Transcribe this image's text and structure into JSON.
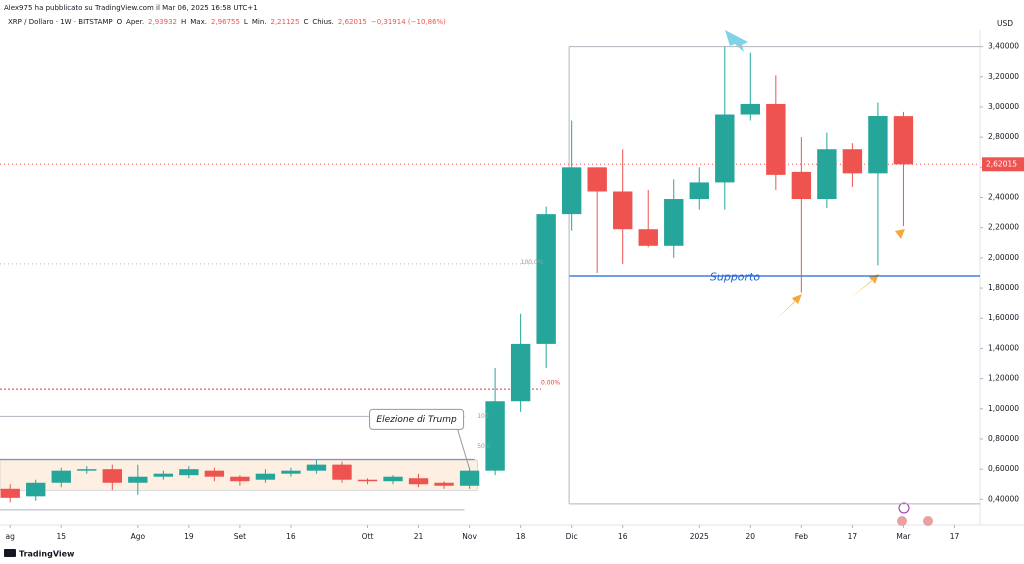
{
  "header": {
    "author": "Alex975 ha pubblicato su TradingView.com il Mar 06, 2025 16:58 UTC+1",
    "symbol": "XRP / Dollaro · 1W · BITSTAMP",
    "fields": [
      {
        "key": "O",
        "label": "Aper.",
        "value": "2,93932"
      },
      {
        "key": "H",
        "label": "Max.",
        "value": "2,96755"
      },
      {
        "key": "L",
        "label": "Min.",
        "value": "2,21125"
      },
      {
        "key": "C",
        "label": "Chius.",
        "value": "2,62015"
      }
    ],
    "change": "−0,31914 (−10,86%)",
    "currency": "USD",
    "logo": "TradingView"
  },
  "chart_data": {
    "type": "candlestick",
    "up_color": "#26a69a",
    "down_color": "#ef5350",
    "x": [
      0,
      1,
      2,
      3,
      4,
      5,
      6,
      7,
      8,
      9,
      10,
      11,
      12,
      13,
      14,
      15,
      16,
      17,
      18,
      19,
      20,
      21,
      22,
      23,
      24,
      25,
      26,
      27,
      28,
      29,
      30,
      31,
      32,
      33,
      34,
      35
    ],
    "open": [
      0.47,
      0.42,
      0.51,
      0.59,
      0.6,
      0.51,
      0.55,
      0.56,
      0.59,
      0.55,
      0.53,
      0.57,
      0.59,
      0.63,
      0.53,
      0.52,
      0.54,
      0.51,
      0.49,
      0.59,
      1.05,
      1.43,
      2.29,
      2.6,
      2.44,
      2.19,
      2.08,
      2.39,
      2.5,
      2.95,
      3.02,
      2.57,
      2.39,
      2.72,
      2.56,
      2.93932
    ],
    "high": [
      0.5,
      0.53,
      0.61,
      0.62,
      0.63,
      0.63,
      0.59,
      0.62,
      0.61,
      0.56,
      0.6,
      0.61,
      0.66,
      0.65,
      0.54,
      0.56,
      0.57,
      0.52,
      0.61,
      1.27,
      1.63,
      2.34,
      2.91,
      2.6,
      2.72,
      2.45,
      2.52,
      2.6,
      3.4,
      3.36,
      3.21,
      2.8,
      2.83,
      2.76,
      3.03,
      2.96755
    ],
    "low": [
      0.38,
      0.39,
      0.48,
      0.57,
      0.46,
      0.43,
      0.53,
      0.54,
      0.52,
      0.49,
      0.51,
      0.55,
      0.57,
      0.51,
      0.5,
      0.5,
      0.48,
      0.47,
      0.47,
      0.56,
      0.98,
      1.27,
      2.18,
      1.9,
      1.96,
      2.07,
      2.0,
      2.32,
      2.32,
      2.91,
      2.45,
      1.77,
      2.33,
      2.47,
      1.95,
      2.21125
    ],
    "close": [
      0.41,
      0.51,
      0.59,
      0.6,
      0.51,
      0.55,
      0.57,
      0.6,
      0.55,
      0.52,
      0.57,
      0.59,
      0.63,
      0.53,
      0.52,
      0.55,
      0.5,
      0.49,
      0.59,
      1.05,
      1.43,
      2.29,
      2.6,
      2.44,
      2.19,
      2.08,
      2.39,
      2.5,
      2.95,
      3.02,
      2.55,
      2.39,
      2.72,
      2.56,
      2.94,
      2.62015
    ],
    "xlim": [
      -0.4,
      38
    ],
    "xticks": [
      {
        "value": 0,
        "label": "ag"
      },
      {
        "value": 2,
        "label": "15"
      },
      {
        "value": 5,
        "label": "Ago"
      },
      {
        "value": 7,
        "label": "19"
      },
      {
        "value": 9,
        "label": "Set"
      },
      {
        "value": 11,
        "label": "16"
      },
      {
        "value": 14,
        "label": "Ott"
      },
      {
        "value": 16,
        "label": "21"
      },
      {
        "value": 18,
        "label": "Nov"
      },
      {
        "value": 20,
        "label": "18"
      },
      {
        "value": 22,
        "label": "Dic"
      },
      {
        "value": 24,
        "label": "16"
      },
      {
        "value": 27,
        "label": "2025"
      },
      {
        "value": 29,
        "label": "20"
      },
      {
        "value": 31,
        "label": "Feb"
      },
      {
        "value": 33,
        "label": "17"
      },
      {
        "value": 35,
        "label": "Mar"
      },
      {
        "value": 37,
        "label": "17"
      }
    ],
    "ylim": [
      0.23,
      3.51
    ],
    "yticks": [
      {
        "value": 0.4,
        "label": "0,40000"
      },
      {
        "value": 0.6,
        "label": "0,60000"
      },
      {
        "value": 0.8,
        "label": "0,80000"
      },
      {
        "value": 1.0,
        "label": "1,00000"
      },
      {
        "value": 1.2,
        "label": "1,20000"
      },
      {
        "value": 1.4,
        "label": "1,40000"
      },
      {
        "value": 1.6,
        "label": "1,60000"
      },
      {
        "value": 1.8,
        "label": "1,80000"
      },
      {
        "value": 2.0,
        "label": "2,00000"
      },
      {
        "value": 2.2,
        "label": "2,20000"
      },
      {
        "value": 2.4,
        "label": "2,40000"
      },
      {
        "value": 2.6,
        "label": "2,60000"
      },
      {
        "value": 2.8,
        "label": "2,80000"
      },
      {
        "value": 3.0,
        "label": "3,00000"
      },
      {
        "value": 3.2,
        "label": "3,20000"
      },
      {
        "value": 3.4,
        "label": "3,40000"
      }
    ],
    "grid": false,
    "last_price": {
      "value": 2.62015,
      "label": "2,62015",
      "color": "#ef5350"
    },
    "zones": [
      {
        "x0": -0.4,
        "x1": 18.3,
        "y0": 0.46,
        "y1": 0.66,
        "color": "#fdf0e2"
      }
    ],
    "levels": [
      {
        "value": 0.665,
        "x0": -0.4,
        "x1": 18.2,
        "color": "#9c6fd6",
        "dash": ""
      },
      {
        "value": 0.95,
        "x0": -0.4,
        "x1": 17.8,
        "color": "#b2b5be",
        "dash": ""
      },
      {
        "value": 0.33,
        "x0": -0.4,
        "x1": 17.8,
        "color": "#b2b5be",
        "dash": ""
      },
      {
        "value": 1.13,
        "x0": -0.4,
        "x1": 20.8,
        "color": "#e53935",
        "dash": "2,2"
      },
      {
        "value": 1.96,
        "x0": -0.4,
        "x1": 20.5,
        "color": "#b2b5be",
        "dash": "1,3"
      },
      {
        "value": 3.4,
        "x0": 21.9,
        "x1": 38,
        "color": "#b2b5be",
        "dash": ""
      },
      {
        "value": 0.37,
        "x0": 21.9,
        "x1": 38,
        "color": "#b2b5be",
        "dash": ""
      },
      {
        "value": 1.88,
        "x0": 21.9,
        "x1": 38,
        "color": "#1e63d6",
        "dash": ""
      }
    ],
    "labels": [
      {
        "text": "Supporto",
        "x": 28.4,
        "y": 1.87,
        "color": "#1e63d6"
      },
      {
        "text": "100",
        "x": 18.3,
        "y": 0.95,
        "color": "#9598a1"
      },
      {
        "text": "50.0",
        "x": 18.3,
        "y": 0.75,
        "color": "#9598a1"
      },
      {
        "text": "0.00%",
        "x": 20.8,
        "y": 1.17,
        "color": "#e53935"
      },
      {
        "text": "100.0%",
        "x": 20.0,
        "y": 1.97,
        "color": "#9598a1"
      }
    ],
    "callout": {
      "text": "Elezione di Trump",
      "x": 18,
      "y": 0.93
    }
  }
}
